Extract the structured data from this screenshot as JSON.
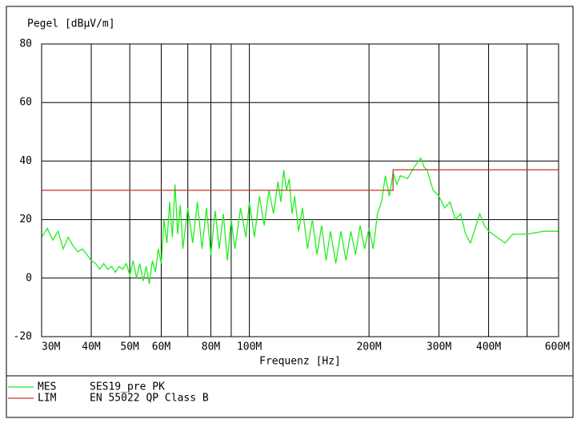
{
  "chart_data": {
    "type": "line",
    "y_label": "Pegel [dBµV/m]",
    "x_label": "Frequenz [Hz]",
    "log_x": true,
    "grid": true,
    "xlim": [
      30000000.0,
      600000000.0
    ],
    "ylim": [
      -20,
      80
    ],
    "yticks": [
      -20,
      0,
      20,
      40,
      60,
      80
    ],
    "xticks": [
      {
        "value": 30000000.0,
        "label": "30M"
      },
      {
        "value": 40000000.0,
        "label": "40M"
      },
      {
        "value": 50000000.0,
        "label": "50M"
      },
      {
        "value": 60000000.0,
        "label": "60M"
      },
      {
        "value": 80000000.0,
        "label": "80M"
      },
      {
        "value": 100000000.0,
        "label": "100M"
      },
      {
        "value": 200000000.0,
        "label": "200M"
      },
      {
        "value": 300000000.0,
        "label": "300M"
      },
      {
        "value": 400000000.0,
        "label": "400M"
      },
      {
        "value": 600000000.0,
        "label": "600M"
      }
    ],
    "xminor": [
      70000000.0,
      90000000.0,
      500000000.0
    ],
    "series": [
      {
        "name": "MES",
        "description": "SES19_pre PK",
        "color": "#22ee22",
        "x": [
          30000000.0,
          31000000.0,
          32000000.0,
          33000000.0,
          34000000.0,
          35000000.0,
          36000000.0,
          37000000.0,
          38000000.0,
          39000000.0,
          40000000.0,
          41000000.0,
          42000000.0,
          43000000.0,
          44000000.0,
          45000000.0,
          46000000.0,
          47000000.0,
          48000000.0,
          49000000.0,
          50000000.0,
          51000000.0,
          52000000.0,
          53000000.0,
          54000000.0,
          55000000.0,
          56000000.0,
          57000000.0,
          58000000.0,
          59000000.0,
          60000000.0,
          61000000.0,
          62000000.0,
          63000000.0,
          64000000.0,
          65000000.0,
          66000000.0,
          67000000.0,
          68000000.0,
          70000000.0,
          72000000.0,
          74000000.0,
          76000000.0,
          78000000.0,
          80000000.0,
          82000000.0,
          84000000.0,
          86000000.0,
          88000000.0,
          90000000.0,
          92000000.0,
          95000000.0,
          98000000.0,
          100000000.0,
          103000000.0,
          106000000.0,
          109000000.0,
          112000000.0,
          115000000.0,
          118000000.0,
          120000000.0,
          122000000.0,
          124000000.0,
          126000000.0,
          128000000.0,
          130000000.0,
          133000000.0,
          136000000.0,
          140000000.0,
          144000000.0,
          148000000.0,
          152000000.0,
          156000000.0,
          160000000.0,
          165000000.0,
          170000000.0,
          175000000.0,
          180000000.0,
          185000000.0,
          190000000.0,
          195000000.0,
          200000000.0,
          205000000.0,
          210000000.0,
          215000000.0,
          220000000.0,
          225000000.0,
          230000000.0,
          235000000.0,
          240000000.0,
          250000000.0,
          260000000.0,
          270000000.0,
          275000000.0,
          280000000.0,
          290000000.0,
          300000000.0,
          310000000.0,
          320000000.0,
          330000000.0,
          340000000.0,
          350000000.0,
          360000000.0,
          370000000.0,
          380000000.0,
          390000000.0,
          400000000.0,
          420000000.0,
          440000000.0,
          460000000.0,
          500000000.0,
          550000000.0,
          600000000.0
        ],
        "values": [
          14,
          17,
          13,
          16,
          10,
          14,
          11,
          9,
          10,
          8,
          6,
          5,
          3,
          5,
          3,
          4,
          2,
          4,
          3,
          5,
          1,
          6,
          0,
          5,
          -1,
          4,
          -2,
          6,
          2,
          10,
          5,
          20,
          12,
          26,
          14,
          32,
          15,
          25,
          10,
          24,
          12,
          26,
          10,
          24,
          8,
          23,
          10,
          22,
          6,
          20,
          10,
          24,
          14,
          26,
          14,
          28,
          18,
          30,
          22,
          33,
          26,
          37,
          30,
          34,
          22,
          28,
          16,
          24,
          10,
          20,
          8,
          18,
          6,
          16,
          5,
          16,
          6,
          16,
          8,
          18,
          10,
          17,
          10,
          22,
          26,
          35,
          28,
          36,
          32,
          35,
          34,
          38,
          41,
          38,
          37,
          30,
          28,
          24,
          26,
          20,
          22,
          15,
          12,
          17,
          22,
          18,
          16,
          14,
          12,
          15,
          15,
          16,
          16
        ]
      },
      {
        "name": "LIM",
        "description": "EN 55022 QP Class B",
        "color": "#c0392b",
        "x": [
          30000000.0,
          230000000.0,
          230000000.0,
          600000000.0
        ],
        "values": [
          30,
          30,
          37,
          37
        ]
      }
    ]
  }
}
